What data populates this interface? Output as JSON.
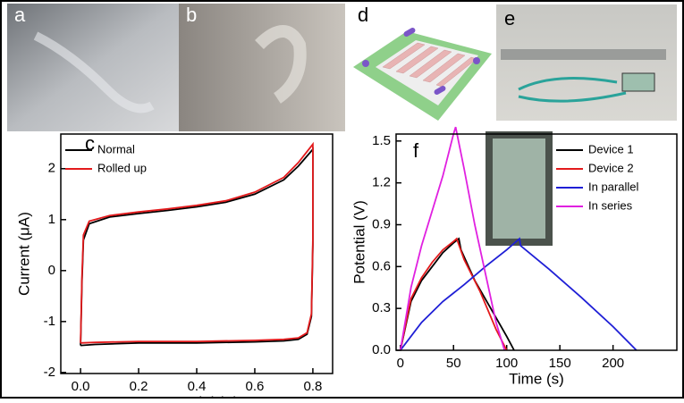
{
  "photo_panels": [
    {
      "label": "a"
    },
    {
      "label": "b"
    },
    {
      "label": "d"
    },
    {
      "label": "e"
    }
  ],
  "chart_data": [
    {
      "type": "line",
      "panel_label": "c",
      "x_label": "Potential (V)",
      "y_label": "Current (μA)",
      "xlim": [
        -0.068,
        0.868
      ],
      "ylim": [
        -2.02,
        2.68
      ],
      "xticks": [
        {
          "value": 0,
          "label": "0.0"
        },
        0.2,
        0.4,
        0.6,
        0.8
      ],
      "yticks": [
        -2,
        -1,
        0,
        1,
        2
      ],
      "legend": "upper left",
      "series": [
        {
          "name": "Normal",
          "color": "#000000",
          "x": [
            0.0,
            0.005,
            0.01,
            0.03,
            0.1,
            0.2,
            0.3,
            0.4,
            0.5,
            0.6,
            0.7,
            0.75,
            0.8,
            0.8,
            0.795,
            0.78,
            0.75,
            0.7,
            0.6,
            0.4,
            0.2,
            0.05,
            0.0
          ],
          "values": [
            -1.47,
            -0.2,
            0.6,
            0.92,
            1.05,
            1.12,
            1.18,
            1.25,
            1.34,
            1.5,
            1.78,
            2.05,
            2.38,
            0.5,
            -0.9,
            -1.25,
            -1.35,
            -1.38,
            -1.4,
            -1.42,
            -1.42,
            -1.45,
            -1.47
          ]
        },
        {
          "name": "Rolled up",
          "color": "#e31a1c",
          "x": [
            0.0,
            0.005,
            0.01,
            0.03,
            0.1,
            0.2,
            0.3,
            0.4,
            0.5,
            0.6,
            0.7,
            0.75,
            0.8,
            0.8,
            0.795,
            0.78,
            0.75,
            0.7,
            0.6,
            0.4,
            0.2,
            0.05,
            0.0
          ],
          "values": [
            -1.42,
            -0.1,
            0.7,
            0.97,
            1.08,
            1.15,
            1.21,
            1.28,
            1.37,
            1.54,
            1.83,
            2.12,
            2.48,
            0.6,
            -0.85,
            -1.22,
            -1.32,
            -1.35,
            -1.37,
            -1.39,
            -1.39,
            -1.41,
            -1.42
          ]
        }
      ]
    },
    {
      "type": "line",
      "panel_label": "f",
      "x_label": "Time (s)",
      "y_label": "Potential (V)",
      "xlim": [
        -4,
        260
      ],
      "ylim": [
        0,
        1.55
      ],
      "xticks": [
        0,
        50,
        100,
        150,
        200
      ],
      "yticks": [
        {
          "value": 0,
          "label": "0.0"
        },
        0.3,
        0.6,
        0.9,
        1.2,
        1.5
      ],
      "legend": "upper right",
      "series": [
        {
          "name": "Device 1",
          "color": "#000000",
          "x": [
            0,
            10,
            20,
            30,
            40,
            50,
            55,
            57,
            70,
            85,
            100,
            107
          ],
          "values": [
            0,
            0.35,
            0.5,
            0.6,
            0.7,
            0.77,
            0.8,
            0.72,
            0.5,
            0.3,
            0.1,
            0
          ]
        },
        {
          "name": "Device 2",
          "color": "#e31a1c",
          "x": [
            0,
            10,
            20,
            30,
            40,
            50,
            53,
            60,
            75,
            90,
            100
          ],
          "values": [
            0,
            0.37,
            0.52,
            0.63,
            0.72,
            0.78,
            0.8,
            0.65,
            0.42,
            0.15,
            0
          ]
        },
        {
          "name": "In parallel",
          "color": "#1f1fd6",
          "x": [
            0,
            20,
            40,
            60,
            80,
            100,
            112,
            113,
            140,
            170,
            200,
            222
          ],
          "values": [
            0,
            0.2,
            0.35,
            0.47,
            0.6,
            0.72,
            0.8,
            0.75,
            0.58,
            0.38,
            0.17,
            0
          ]
        },
        {
          "name": "In series",
          "color": "#e020e0",
          "x": [
            0,
            10,
            20,
            30,
            40,
            50,
            52,
            60,
            70,
            80,
            90,
            98
          ],
          "values": [
            0,
            0.45,
            0.75,
            1.0,
            1.25,
            1.55,
            1.6,
            1.3,
            0.9,
            0.55,
            0.2,
            0
          ]
        }
      ]
    }
  ]
}
